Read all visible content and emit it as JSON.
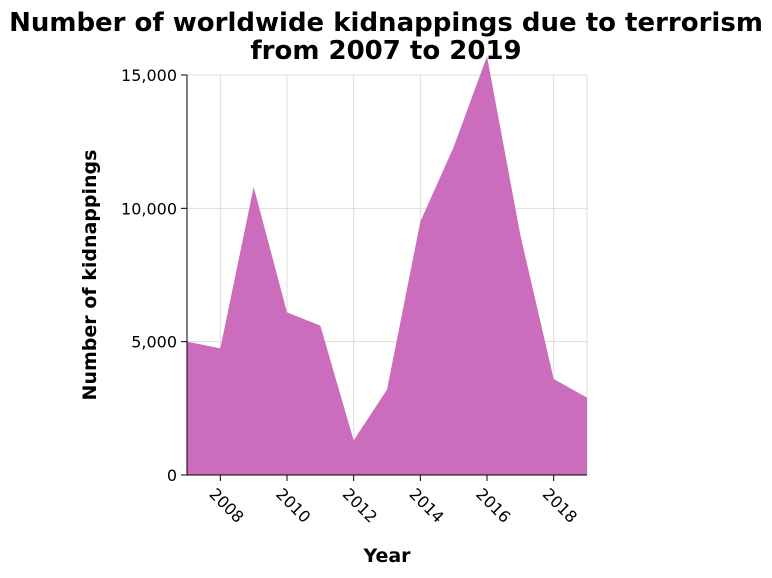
{
  "title_line1": "Number of worldwide kidnappings due to terrorism",
  "title_line2": "from 2007 to 2019",
  "chart_data": {
    "type": "area",
    "title": "Number of worldwide kidnappings due to terrorism from 2007 to 2019",
    "xlabel": "Year",
    "ylabel": "Number of kidnappings",
    "x": [
      2007,
      2008,
      2009,
      2010,
      2011,
      2012,
      2013,
      2014,
      2015,
      2016,
      2017,
      2018,
      2019
    ],
    "series": [
      {
        "values": [
          5000,
          4750,
          10800,
          6100,
          5600,
          1300,
          3200,
          9500,
          12300,
          15700,
          9000,
          3600,
          2900
        ]
      }
    ],
    "xlim": [
      2007,
      2019
    ],
    "ylim": [
      0,
      15000
    ],
    "x_ticks": [
      2008,
      2010,
      2012,
      2014,
      2016,
      2018
    ],
    "x_tick_labels": [
      "2008",
      "2010",
      "2012",
      "2014",
      "2016",
      "2018"
    ],
    "y_ticks": [
      0,
      5000,
      10000,
      15000
    ],
    "y_tick_labels": [
      "0",
      "5,000",
      "10,000",
      "15,000"
    ],
    "grid": true,
    "legend": "none",
    "colors": {
      "area": "#cc6cbc",
      "grid": "#dddddd",
      "axis": "#000000"
    }
  }
}
